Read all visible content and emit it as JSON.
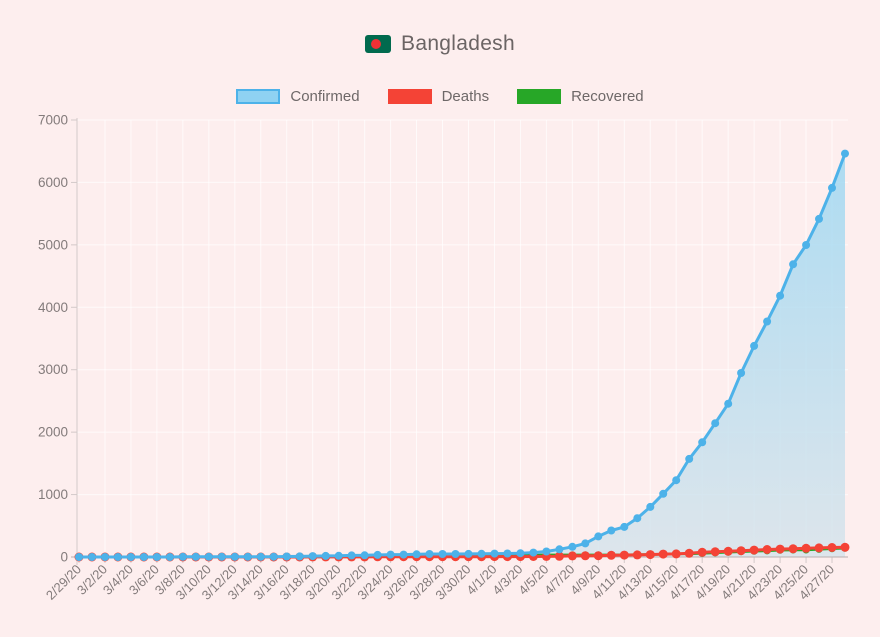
{
  "window": {
    "background": "#fdeeee"
  },
  "header": {
    "title": "Bangladesh"
  },
  "flag": {
    "field_color": "#016a4e",
    "disc_color": "#ee3135"
  },
  "legend": {
    "items": [
      {
        "label": "Confirmed",
        "fill": "#8fd2f2",
        "border": "#4db2e9"
      },
      {
        "label": "Deaths",
        "fill": "#f44336",
        "border": "#f44336"
      },
      {
        "label": "Recovered",
        "fill": "#27a727",
        "border": "#27a727"
      }
    ]
  },
  "chart_data": {
    "type": "line",
    "title": "Bangladesh",
    "x": [
      "2/29/20",
      "3/1/20",
      "3/2/20",
      "3/3/20",
      "3/4/20",
      "3/5/20",
      "3/6/20",
      "3/7/20",
      "3/8/20",
      "3/9/20",
      "3/10/20",
      "3/11/20",
      "3/12/20",
      "3/13/20",
      "3/14/20",
      "3/15/20",
      "3/16/20",
      "3/17/20",
      "3/18/20",
      "3/19/20",
      "3/20/20",
      "3/21/20",
      "3/22/20",
      "3/23/20",
      "3/24/20",
      "3/25/20",
      "3/26/20",
      "3/27/20",
      "3/28/20",
      "3/29/20",
      "3/30/20",
      "3/31/20",
      "4/1/20",
      "4/2/20",
      "4/3/20",
      "4/4/20",
      "4/5/20",
      "4/6/20",
      "4/7/20",
      "4/8/20",
      "4/9/20",
      "4/10/20",
      "4/11/20",
      "4/12/20",
      "4/13/20",
      "4/14/20",
      "4/15/20",
      "4/16/20",
      "4/17/20",
      "4/18/20",
      "4/19/20",
      "4/20/20",
      "4/21/20",
      "4/22/20",
      "4/23/20",
      "4/24/20",
      "4/25/20",
      "4/26/20",
      "4/27/20",
      "4/28/20"
    ],
    "x_tick_every": 2,
    "series": [
      {
        "name": "Confirmed",
        "color": "#4db2e9",
        "point_radius": 4,
        "line_width": 3,
        "area_fill": true,
        "values": [
          0,
          0,
          0,
          0,
          0,
          0,
          0,
          0,
          3,
          3,
          3,
          3,
          3,
          3,
          3,
          5,
          8,
          10,
          14,
          17,
          20,
          25,
          27,
          33,
          39,
          39,
          44,
          48,
          48,
          48,
          49,
          51,
          54,
          56,
          61,
          70,
          88,
          123,
          164,
          218,
          330,
          424,
          482,
          621,
          803,
          1012,
          1231,
          1572,
          1838,
          2144,
          2456,
          2948,
          3382,
          3772,
          4186,
          4689,
          4998,
          5416,
          5913,
          6462
        ]
      },
      {
        "name": "Deaths",
        "color": "#f44336",
        "point_radius": 4.5,
        "line_width": 3,
        "area_fill": false,
        "values": [
          0,
          0,
          0,
          0,
          0,
          0,
          0,
          0,
          0,
          0,
          0,
          0,
          0,
          0,
          0,
          0,
          0,
          0,
          1,
          1,
          1,
          2,
          2,
          3,
          4,
          5,
          5,
          5,
          5,
          5,
          5,
          5,
          6,
          6,
          6,
          8,
          9,
          12,
          17,
          20,
          21,
          27,
          30,
          34,
          39,
          46,
          50,
          60,
          75,
          84,
          91,
          101,
          110,
          120,
          127,
          131,
          140,
          145,
          152,
          155
        ]
      },
      {
        "name": "Recovered",
        "color": "#27a727",
        "point_radius": 3.5,
        "line_width": 2.5,
        "area_fill": false,
        "values": [
          0,
          0,
          0,
          0,
          0,
          0,
          0,
          0,
          0,
          0,
          0,
          0,
          0,
          0,
          0,
          2,
          2,
          2,
          2,
          2,
          3,
          3,
          3,
          3,
          3,
          5,
          7,
          11,
          11,
          15,
          19,
          25,
          25,
          25,
          26,
          30,
          33,
          33,
          33,
          33,
          33,
          33,
          36,
          39,
          42,
          42,
          49,
          49,
          58,
          66,
          75,
          85,
          92,
          98,
          108,
          112,
          112,
          122,
          131,
          139
        ]
      }
    ],
    "ylim": [
      0,
      7000
    ],
    "y_ticks": [
      0,
      1000,
      2000,
      3000,
      4000,
      5000,
      6000,
      7000
    ],
    "xlabel": "",
    "ylabel": "",
    "grid": true,
    "legend_position": "top",
    "axis_color": "#b9afaf",
    "minor_axis_color": "#d3c9c9",
    "tick_label_color": "#837b7b",
    "grid_color": "rgba(255,255,255,0.7)",
    "area_gradient_top": "rgba(146,213,243,0.78)",
    "area_gradient_bottom": "rgba(213,227,235,0.8)"
  }
}
